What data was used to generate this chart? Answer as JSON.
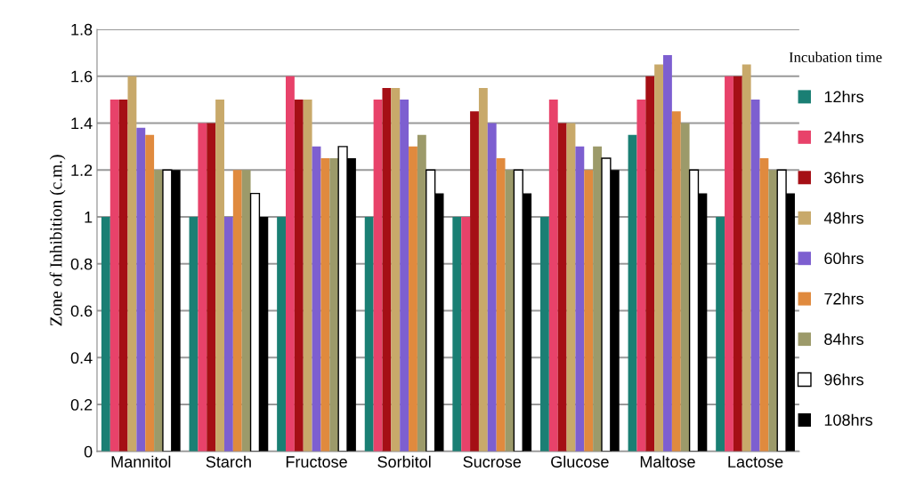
{
  "chart_data": {
    "type": "bar",
    "ylabel": "Zone of Inhibition (c.m.)",
    "legend_title": "Incubation time",
    "categories": [
      "Mannitol",
      "Starch",
      "Fructose",
      "Sorbitol",
      "Sucrose",
      "Glucose",
      "Maltose",
      "Lactose"
    ],
    "series": [
      {
        "name": "12hrs",
        "color": "#1a7f74",
        "values": [
          1,
          1,
          1,
          1,
          1,
          1,
          1.35,
          1
        ]
      },
      {
        "name": "24hrs",
        "color": "#e8426a",
        "values": [
          1.5,
          1.4,
          1.6,
          1.5,
          1.0,
          1.5,
          1.5,
          1.6
        ]
      },
      {
        "name": "36hrs",
        "color": "#a50f15",
        "values": [
          1.5,
          1.4,
          1.5,
          1.55,
          1.45,
          1.4,
          1.6,
          1.6
        ]
      },
      {
        "name": "48hrs",
        "color": "#c8a96a",
        "values": [
          1.6,
          1.5,
          1.5,
          1.55,
          1.55,
          1.4,
          1.65,
          1.65
        ]
      },
      {
        "name": "60hrs",
        "color": "#7d5fd0",
        "values": [
          1.38,
          1.0,
          1.3,
          1.5,
          1.4,
          1.3,
          1.69,
          1.5
        ]
      },
      {
        "name": "72hrs",
        "color": "#e08a3e",
        "values": [
          1.35,
          1.2,
          1.25,
          1.3,
          1.25,
          1.2,
          1.45,
          1.25
        ]
      },
      {
        "name": "84hrs",
        "color": "#9c9a6a",
        "values": [
          1.2,
          1.2,
          1.25,
          1.35,
          1.2,
          1.3,
          1.4,
          1.2
        ]
      },
      {
        "name": "96hrs",
        "color": "#ffffff",
        "values": [
          1.2,
          1.1,
          1.3,
          1.2,
          1.2,
          1.25,
          1.2,
          1.2
        ]
      },
      {
        "name": "108hrs",
        "color": "#000000",
        "values": [
          1.2,
          1.0,
          1.25,
          1.1,
          1.1,
          1.2,
          1.1,
          1.1
        ]
      }
    ],
    "ylim": [
      0,
      1.8
    ],
    "yticks": [
      0,
      0.2,
      0.4,
      0.6,
      0.8,
      1,
      1.2,
      1.4,
      1.6,
      1.8
    ],
    "grid": "y",
    "legend": "right"
  }
}
